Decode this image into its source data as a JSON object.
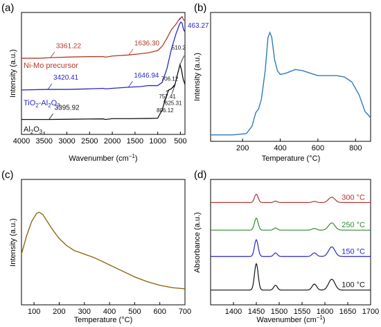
{
  "chart_data": [
    {
      "panel_label": "(a)",
      "type": "line",
      "xlabel": "Wavenumber (cm",
      "xlabel_sup": "−1",
      "xlabel_tail": ")",
      "ylabel": "Intensity (a.u.)",
      "xlim": [
        4000,
        400
      ],
      "x_reversed": true,
      "x_ticks": [
        4000,
        3500,
        3000,
        2500,
        2000,
        1500,
        1000,
        500
      ],
      "ylim": [
        0,
        1
      ],
      "series": [
        {
          "name": "Ni-Mo precursor",
          "color": "#b33a2a",
          "points": [
            [
              4000,
              0.62
            ],
            [
              3600,
              0.62
            ],
            [
              3361,
              0.625
            ],
            [
              3000,
              0.63
            ],
            [
              2500,
              0.635
            ],
            [
              2200,
              0.635
            ],
            [
              2150,
              0.63
            ],
            [
              2000,
              0.64
            ],
            [
              1636,
              0.65
            ],
            [
              1400,
              0.66
            ],
            [
              1200,
              0.67
            ],
            [
              1000,
              0.69
            ],
            [
              900,
              0.73
            ],
            [
              800,
              0.8
            ],
            [
              700,
              0.88
            ],
            [
              600,
              0.93
            ],
            [
              520,
              0.98
            ],
            [
              463,
              1.0
            ],
            [
              430,
              0.97
            ],
            [
              400,
              0.96
            ]
          ]
        },
        {
          "name": "TiO₂-Al₂O₃",
          "color": "#2727c4",
          "points": [
            [
              4000,
              0.33
            ],
            [
              3420,
              0.335
            ],
            [
              3000,
              0.335
            ],
            [
              2500,
              0.34
            ],
            [
              2200,
              0.345
            ],
            [
              2150,
              0.34
            ],
            [
              2000,
              0.345
            ],
            [
              1646,
              0.355
            ],
            [
              1400,
              0.36
            ],
            [
              1200,
              0.37
            ],
            [
              1000,
              0.37
            ],
            [
              900,
              0.4
            ],
            [
              800,
              0.52
            ],
            [
              700,
              0.7
            ],
            [
              600,
              0.84
            ],
            [
              520,
              0.93
            ],
            [
              490,
              0.95
            ],
            [
              463,
              0.94
            ],
            [
              430,
              0.88
            ],
            [
              400,
              0.86
            ]
          ]
        },
        {
          "name": "Al₂O₃",
          "color": "#111111",
          "points": [
            [
              4000,
              0.06
            ],
            [
              3396,
              0.06
            ],
            [
              3000,
              0.062
            ],
            [
              2500,
              0.065
            ],
            [
              2200,
              0.066
            ],
            [
              2150,
              0.06
            ],
            [
              2000,
              0.068
            ],
            [
              1600,
              0.068
            ],
            [
              1200,
              0.07
            ],
            [
              1000,
              0.072
            ],
            [
              900,
              0.15
            ],
            [
              806,
              0.28
            ],
            [
              757,
              0.33
            ],
            [
              706,
              0.34
            ],
            [
              625,
              0.37
            ],
            [
              560,
              0.48
            ],
            [
              510,
              0.56
            ],
            [
              480,
              0.52
            ],
            [
              440,
              0.43
            ],
            [
              400,
              0.38
            ]
          ]
        }
      ],
      "annotations": [
        {
          "text": "3361.22",
          "x": 3361,
          "series": "Ni-Mo precursor",
          "color": "#b33a2a"
        },
        {
          "text": "1636.30",
          "x": 1636,
          "series": "Ni-Mo precursor",
          "color": "#b33a2a"
        },
        {
          "text": "463.27",
          "x": 463,
          "series": "Ni-Mo precursor",
          "color": "#2727c4"
        },
        {
          "text": "3420.41",
          "x": 3420,
          "series": "TiO₂-Al₂O₃",
          "color": "#2727c4"
        },
        {
          "text": "1646.94",
          "x": 1646,
          "series": "TiO₂-Al₂O₃",
          "color": "#2727c4"
        },
        {
          "text": "3395.92",
          "x": 3396,
          "series": "Al₂O₃",
          "color": "#111111"
        },
        {
          "text": "510.2",
          "x": 510,
          "series": "Al₂O₃",
          "color": "#111111"
        },
        {
          "text": "706.12",
          "x": 706,
          "series": "Al₂O₃",
          "color": "#111111"
        },
        {
          "text": "757.41",
          "x": 757,
          "series": "Al₂O₃",
          "color": "#111111"
        },
        {
          "text": "806.12",
          "x": 806,
          "series": "Al₂O₃",
          "color": "#111111"
        },
        {
          "text": "625.31",
          "x": 625,
          "series": "Al₂O₃",
          "color": "#111111"
        }
      ],
      "legend_labels": {
        "nimo": "Ni-Mo precursor",
        "tio2_a": "TiO",
        "tio2_sub1": "2",
        "tio2_b": "-Al",
        "tio2_sub2": "2",
        "tio2_c": "O",
        "tio2_sub3": "3",
        "al_a": "Al",
        "al_sub1": "2",
        "al_b": "O",
        "al_sub2": "3"
      }
    },
    {
      "panel_label": "(b)",
      "type": "line",
      "xlabel": "Temperature (°C)",
      "ylabel": "Intensity (a.u.)",
      "xlim": [
        30,
        880
      ],
      "x_ticks": [
        200,
        400,
        600,
        800
      ],
      "ylim": [
        0,
        1
      ],
      "series": [
        {
          "color": "#2f79c0",
          "points": [
            [
              30,
              0.03
            ],
            [
              150,
              0.03
            ],
            [
              220,
              0.04
            ],
            [
              250,
              0.1
            ],
            [
              270,
              0.21
            ],
            [
              285,
              0.24
            ],
            [
              300,
              0.32
            ],
            [
              320,
              0.55
            ],
            [
              335,
              0.82
            ],
            [
              345,
              0.86
            ],
            [
              355,
              0.82
            ],
            [
              370,
              0.64
            ],
            [
              385,
              0.55
            ],
            [
              400,
              0.52
            ],
            [
              430,
              0.53
            ],
            [
              480,
              0.56
            ],
            [
              520,
              0.55
            ],
            [
              560,
              0.53
            ],
            [
              600,
              0.51
            ],
            [
              650,
              0.51
            ],
            [
              700,
              0.51
            ],
            [
              740,
              0.5
            ],
            [
              780,
              0.46
            ],
            [
              820,
              0.35
            ],
            [
              850,
              0.22
            ],
            [
              880,
              0.17
            ]
          ]
        }
      ]
    },
    {
      "panel_label": "(c)",
      "type": "line",
      "xlabel": "Temperature (°C)",
      "ylabel": "Intensity (a.u.)",
      "xlim": [
        50,
        700
      ],
      "x_ticks": [
        100,
        200,
        300,
        400,
        500,
        600,
        700
      ],
      "ylim": [
        0,
        1
      ],
      "series": [
        {
          "color": "#8d6a14",
          "points": [
            [
              50,
              0.4
            ],
            [
              70,
              0.55
            ],
            [
              90,
              0.67
            ],
            [
              110,
              0.74
            ],
            [
              120,
              0.75
            ],
            [
              135,
              0.73
            ],
            [
              150,
              0.68
            ],
            [
              175,
              0.6
            ],
            [
              200,
              0.53
            ],
            [
              230,
              0.47
            ],
            [
              260,
              0.43
            ],
            [
              300,
              0.4
            ],
            [
              340,
              0.37
            ],
            [
              380,
              0.33
            ],
            [
              420,
              0.29
            ],
            [
              460,
              0.25
            ],
            [
              500,
              0.21
            ],
            [
              550,
              0.17
            ],
            [
              600,
              0.14
            ],
            [
              650,
              0.12
            ],
            [
              700,
              0.11
            ]
          ]
        }
      ]
    },
    {
      "panel_label": "(d)",
      "type": "line",
      "xlabel": "Wavenumber (cm",
      "xlabel_sup": "−1",
      "xlabel_tail": ")",
      "ylabel": "Absorbance (a.u.)",
      "xlim": [
        1350,
        1700
      ],
      "x_ticks": [
        1400,
        1450,
        1500,
        1550,
        1600,
        1650,
        1700
      ],
      "peaks": [
        {
          "center": 1450,
          "width": 4
        },
        {
          "center": 1492,
          "width": 4
        },
        {
          "center": 1577,
          "width": 5
        },
        {
          "center": 1615,
          "width": 7
        }
      ],
      "series": [
        {
          "name": "300 °C",
          "color": "#b03434",
          "baseline": 0.83,
          "amps": [
            0.07,
            0.012,
            0.01,
            0.045
          ]
        },
        {
          "name": "250 °C",
          "color": "#2e8a2e",
          "baseline": 0.6,
          "amps": [
            0.1,
            0.018,
            0.014,
            0.06
          ]
        },
        {
          "name": "150 °C",
          "color": "#2626c8",
          "baseline": 0.38,
          "amps": [
            0.14,
            0.03,
            0.03,
            0.08
          ]
        },
        {
          "name": "100 °C",
          "color": "#111111",
          "baseline": 0.1,
          "amps": [
            0.22,
            0.04,
            0.05,
            0.09
          ]
        }
      ]
    }
  ]
}
